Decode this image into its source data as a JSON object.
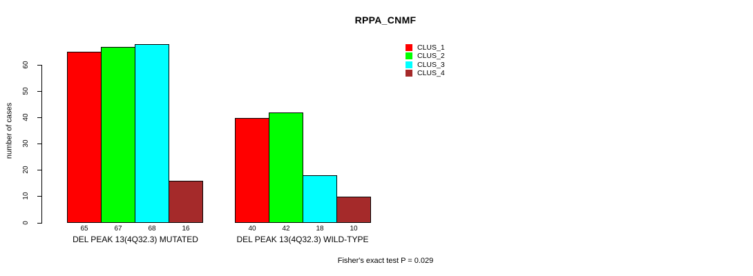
{
  "chart_data": {
    "type": "bar",
    "title": "RPPA_CNMF",
    "ylabel": "number of cases",
    "ylim": [
      0,
      60
    ],
    "yticks": [
      0,
      10,
      20,
      30,
      40,
      50,
      60
    ],
    "grid": false,
    "background": "#FFFFFF",
    "legend_position": "top-right-inside",
    "categories": [
      "DEL PEAK 13(4Q32.3) MUTATED",
      "DEL PEAK 13(4Q32.3) WILD-TYPE"
    ],
    "series": [
      {
        "name": "CLUS_1",
        "color": "#FF0000",
        "values": [
          65,
          40
        ]
      },
      {
        "name": "CLUS_2",
        "color": "#00FF00",
        "values": [
          67,
          42
        ]
      },
      {
        "name": "CLUS_3",
        "color": "#00FFFF",
        "values": [
          68,
          18
        ]
      },
      {
        "name": "CLUS_4",
        "color": "#A52A2A",
        "values": [
          16,
          10
        ]
      }
    ],
    "bar_value_labels": [
      [
        65,
        67,
        68,
        16
      ],
      [
        40,
        42,
        18,
        10
      ]
    ],
    "annotation": "Fisher's exact test P = 0.029"
  }
}
